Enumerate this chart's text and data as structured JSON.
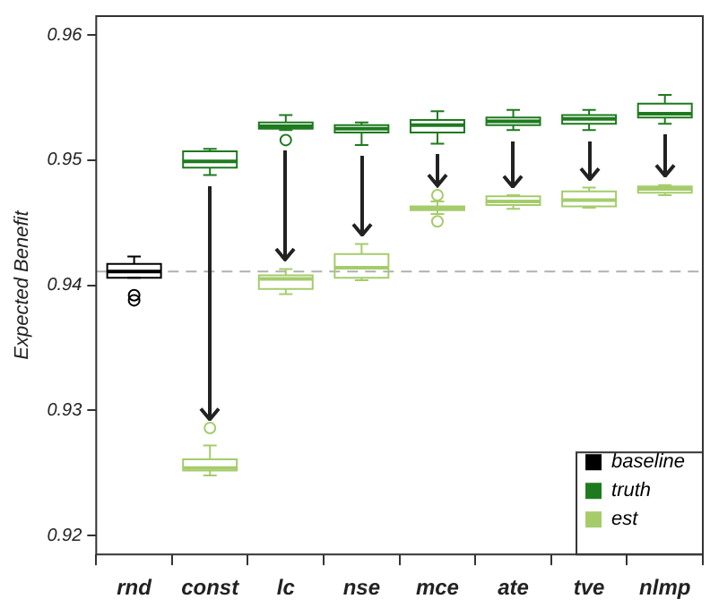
{
  "chart_data": {
    "type": "box",
    "ylabel": "Expected Benefit",
    "categories": [
      "rnd",
      "const",
      "lc",
      "nse",
      "mce",
      "ate",
      "tve",
      "nlmp"
    ],
    "ylim": [
      0.9185,
      0.9615
    ],
    "yticks": [
      0.92,
      0.93,
      0.94,
      0.95,
      0.96
    ],
    "grid": false,
    "legend": "bottom right",
    "ref_lines": [
      {
        "axis": "y",
        "value": 0.9411,
        "color": "#b0b0b0",
        "line_style": "dashed"
      }
    ],
    "series": [
      {
        "name": "baseline",
        "color": "#000000",
        "boxes": [
          {
            "low": 0.9406,
            "q1": 0.9406,
            "median": 0.9411,
            "q3": 0.9417,
            "high": 0.9423,
            "outliers": [
              0.9392,
              0.9388
            ]
          },
          null,
          null,
          null,
          null,
          null,
          null,
          null
        ]
      },
      {
        "name": "truth",
        "color": "#1e7a1e",
        "boxes": [
          null,
          {
            "low": 0.9488,
            "q1": 0.9494,
            "median": 0.9499,
            "q3": 0.9507,
            "high": 0.9509
          },
          {
            "low": 0.9524,
            "q1": 0.9525,
            "median": 0.9527,
            "q3": 0.953,
            "high": 0.9536,
            "outliers": [
              0.9516
            ]
          },
          {
            "low": 0.9512,
            "q1": 0.9522,
            "median": 0.9525,
            "q3": 0.9528,
            "high": 0.953
          },
          {
            "low": 0.9513,
            "q1": 0.9522,
            "median": 0.9528,
            "q3": 0.9532,
            "high": 0.9539
          },
          {
            "low": 0.9524,
            "q1": 0.9528,
            "median": 0.9531,
            "q3": 0.9534,
            "high": 0.954
          },
          {
            "low": 0.9524,
            "q1": 0.9529,
            "median": 0.9533,
            "q3": 0.9536,
            "high": 0.954
          },
          {
            "low": 0.9529,
            "q1": 0.9534,
            "median": 0.9537,
            "q3": 0.9545,
            "high": 0.9552
          }
        ]
      },
      {
        "name": "est",
        "color": "#a5cc6b",
        "boxes": [
          null,
          {
            "low": 0.9248,
            "q1": 0.9252,
            "median": 0.9254,
            "q3": 0.9261,
            "high": 0.9272,
            "outliers": [
              0.9286
            ]
          },
          {
            "low": 0.9393,
            "q1": 0.9397,
            "median": 0.9405,
            "q3": 0.9408,
            "high": 0.9413
          },
          {
            "low": 0.9404,
            "q1": 0.9406,
            "median": 0.9414,
            "q3": 0.9425,
            "high": 0.9433
          },
          {
            "low": 0.9457,
            "q1": 0.946,
            "median": 0.9462,
            "q3": 0.9463,
            "high": 0.9467,
            "outliers": [
              0.9472,
              0.9451
            ]
          },
          {
            "low": 0.9461,
            "q1": 0.9464,
            "median": 0.9467,
            "q3": 0.9471,
            "high": 0.9472
          },
          {
            "low": 0.9462,
            "q1": 0.9463,
            "median": 0.9468,
            "q3": 0.9475,
            "high": 0.9478
          },
          {
            "low": 0.9472,
            "q1": 0.9474,
            "median": 0.9477,
            "q3": 0.9479,
            "high": 0.948
          }
        ]
      }
    ]
  }
}
